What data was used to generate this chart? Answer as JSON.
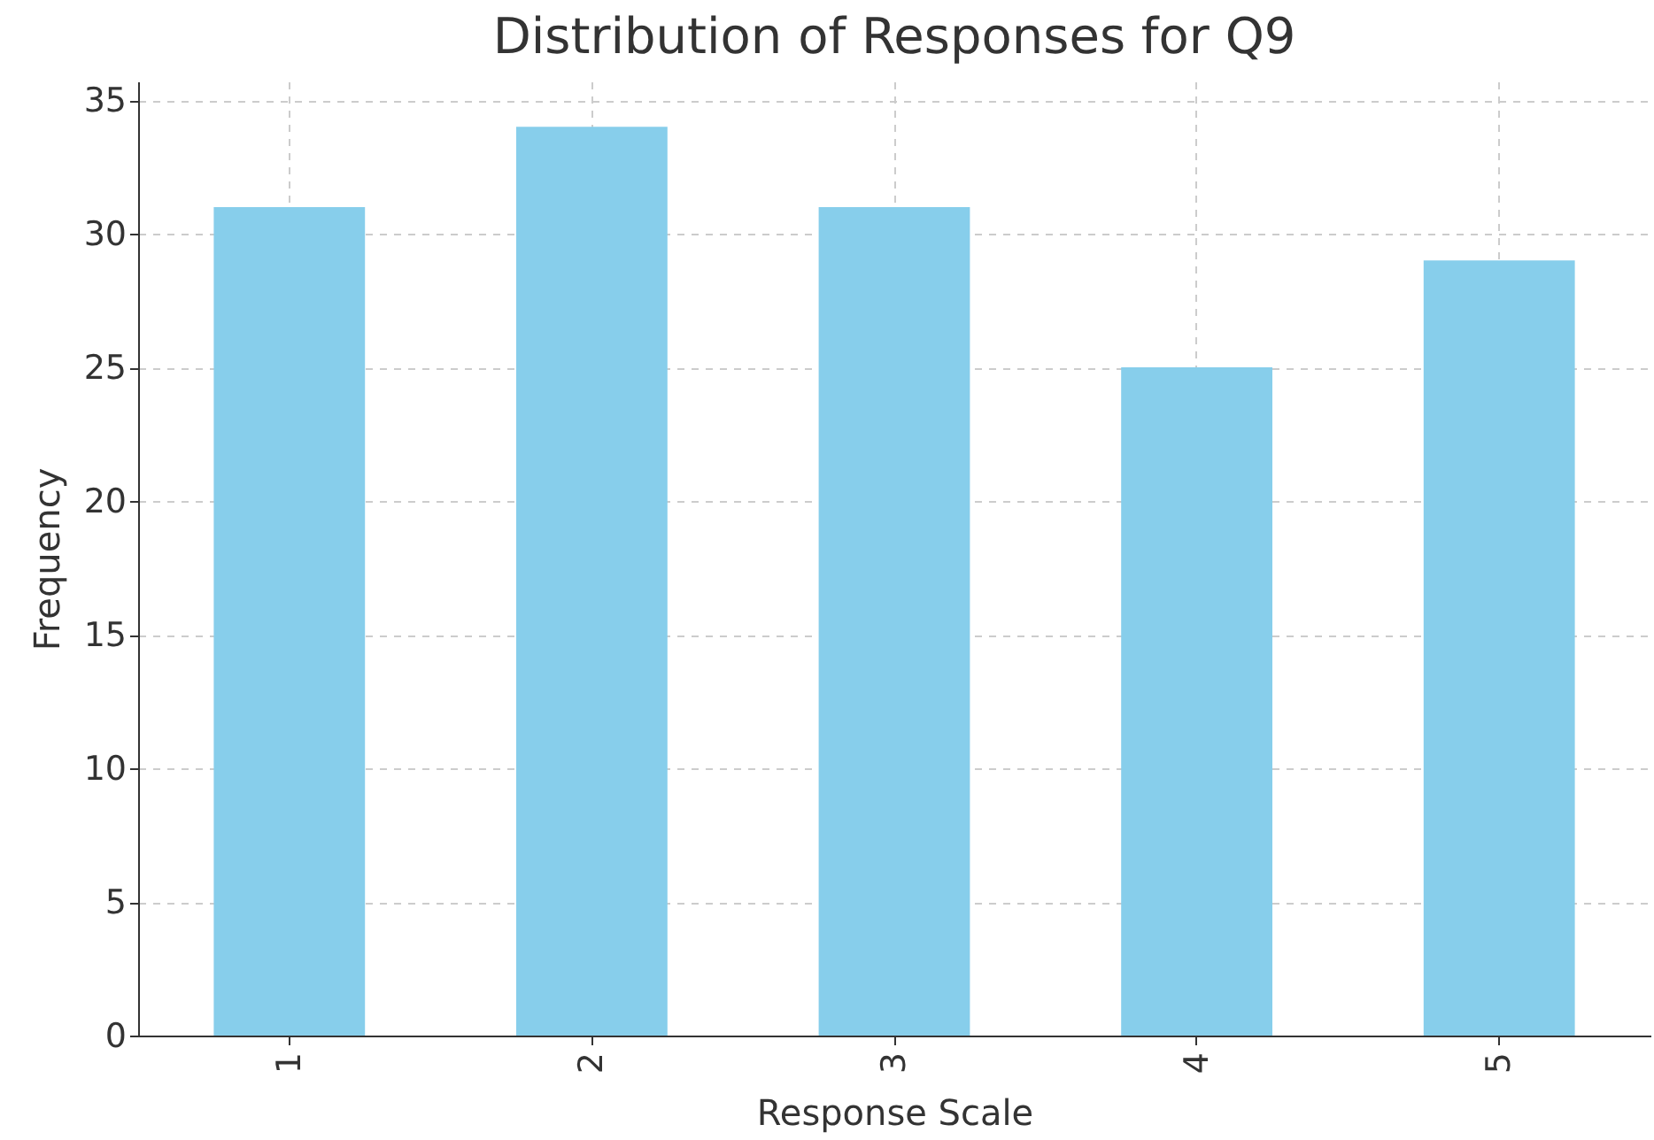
{
  "chart_data": {
    "type": "bar",
    "title": "Distribution of Responses for Q9",
    "xlabel": "Response Scale",
    "ylabel": "Frequency",
    "categories": [
      "1",
      "2",
      "3",
      "4",
      "5"
    ],
    "values": [
      31,
      34,
      31,
      25,
      29
    ],
    "color": "#87ceeb",
    "ylim": [
      0,
      35.7
    ],
    "yticks": [
      0,
      5,
      10,
      15,
      20,
      25,
      30,
      35
    ],
    "grid": true
  }
}
